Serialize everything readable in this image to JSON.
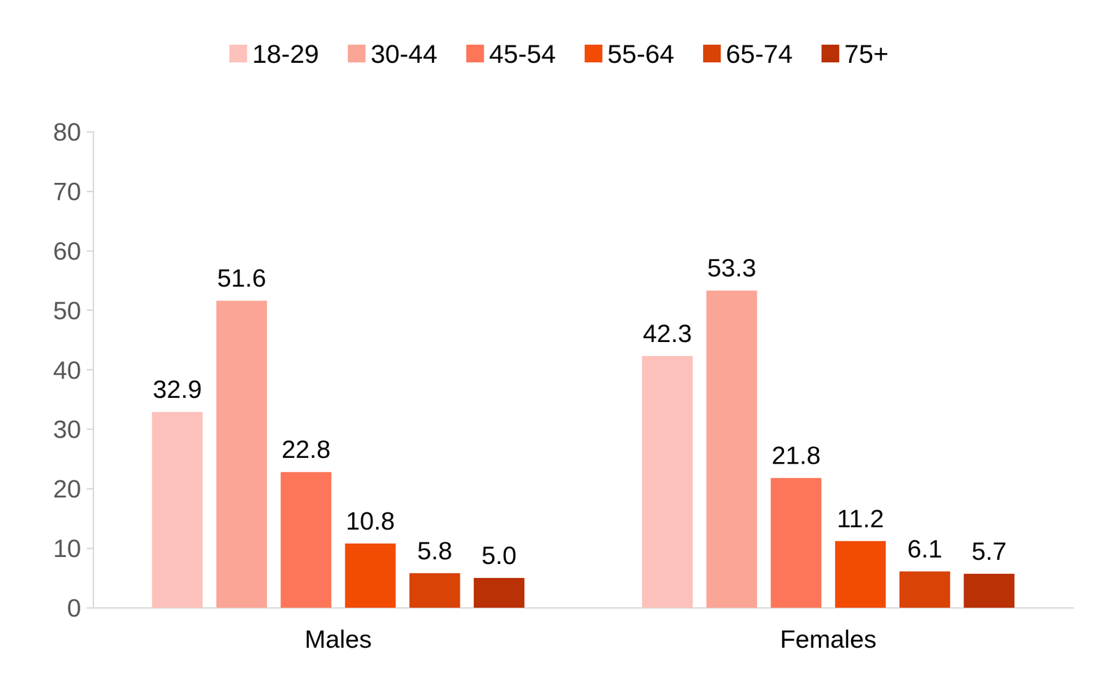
{
  "chart_data": {
    "type": "bar",
    "categories": [
      "Males",
      "Females"
    ],
    "series": [
      {
        "name": "18-29",
        "color": "#fdc1bb",
        "values": [
          32.9,
          42.3
        ]
      },
      {
        "name": "30-44",
        "color": "#fba596",
        "values": [
          51.6,
          53.3
        ]
      },
      {
        "name": "45-54",
        "color": "#fd7659",
        "values": [
          22.8,
          21.8
        ]
      },
      {
        "name": "55-64",
        "color": "#f24c04",
        "values": [
          10.8,
          11.2
        ]
      },
      {
        "name": "65-74",
        "color": "#d94306",
        "values": [
          5.8,
          6.1
        ]
      },
      {
        "name": "75+",
        "color": "#b93104",
        "values": [
          5.0,
          5.7
        ],
        "value_labels": [
          "5.0",
          "5.7"
        ]
      }
    ],
    "ylim": [
      0,
      80
    ],
    "yticks": [
      0,
      10,
      20,
      30,
      40,
      50,
      60,
      70,
      80
    ],
    "grid": false,
    "legend": "top",
    "data_labels": true
  }
}
